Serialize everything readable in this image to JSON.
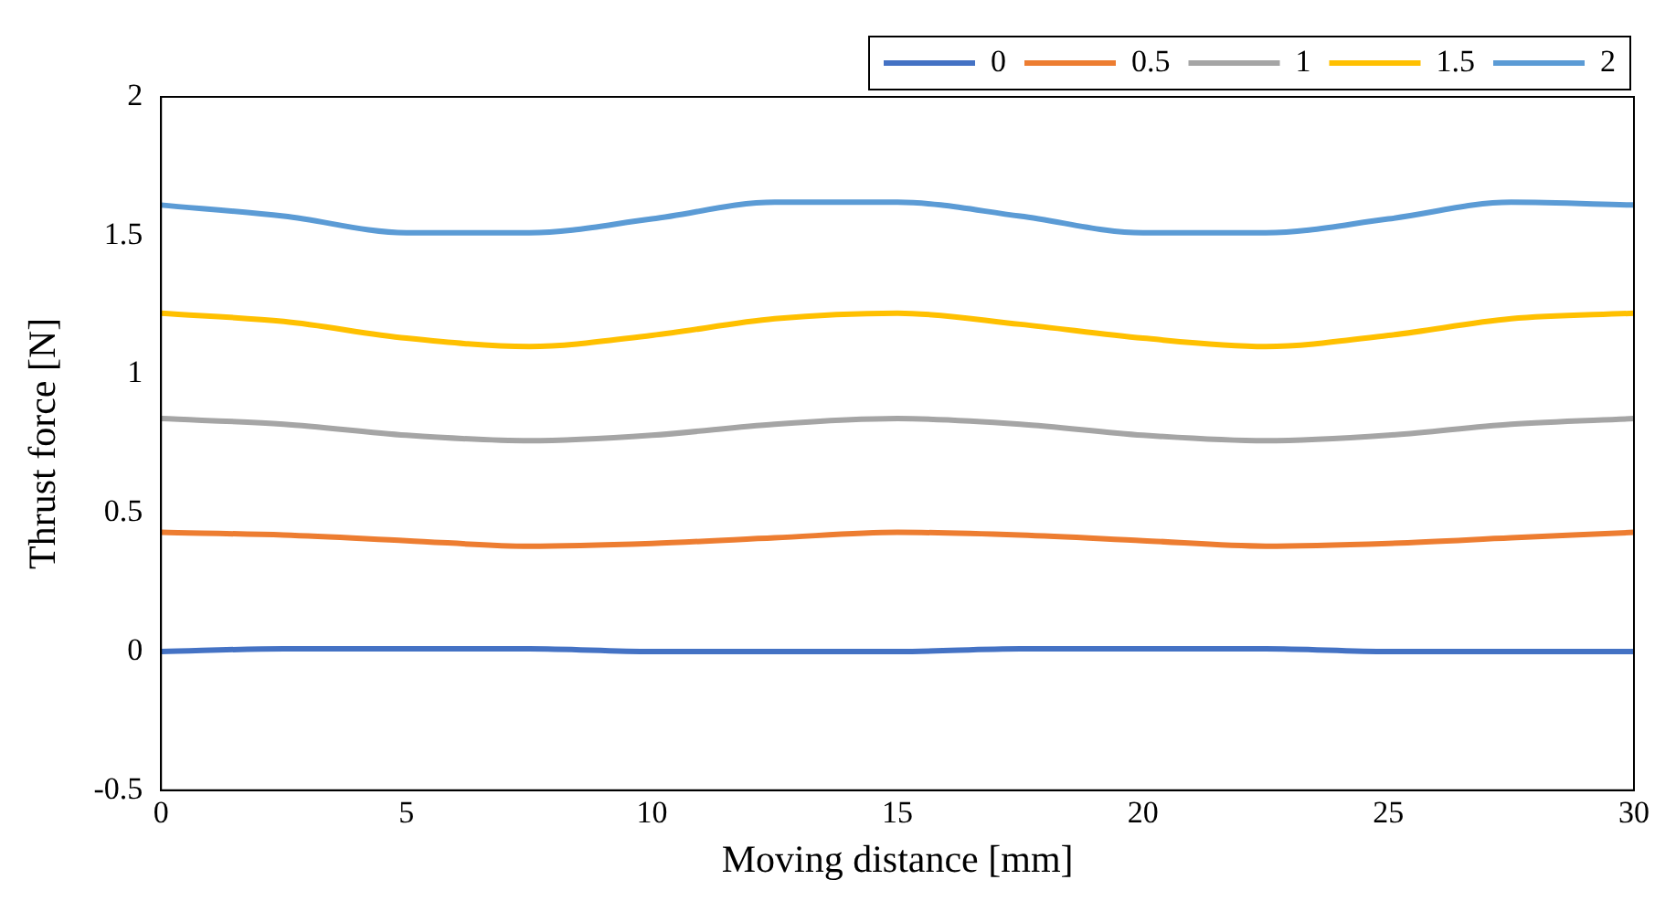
{
  "chart_data": {
    "type": "line",
    "xlabel": "Moving distance [mm]",
    "ylabel": "Thrust force [N]",
    "x": [
      0,
      2.5,
      5,
      7.5,
      10,
      12.5,
      15,
      17.5,
      20,
      22.5,
      25,
      27.5,
      30
    ],
    "series": [
      {
        "name": "0",
        "color": "#4472c4",
        "values": [
          0,
          0.01,
          0.01,
          0.01,
          0,
          0,
          0,
          0.01,
          0.01,
          0.01,
          0,
          0,
          0
        ]
      },
      {
        "name": "0.5",
        "color": "#ed7d31",
        "values": [
          0.43,
          0.42,
          0.4,
          0.38,
          0.39,
          0.41,
          0.43,
          0.42,
          0.4,
          0.38,
          0.39,
          0.41,
          0.43
        ]
      },
      {
        "name": "1",
        "color": "#a5a5a5",
        "values": [
          0.84,
          0.82,
          0.78,
          0.76,
          0.78,
          0.82,
          0.84,
          0.82,
          0.78,
          0.76,
          0.78,
          0.82,
          0.84
        ]
      },
      {
        "name": "1.5",
        "color": "#ffc000",
        "values": [
          1.22,
          1.19,
          1.13,
          1.1,
          1.14,
          1.2,
          1.22,
          1.18,
          1.13,
          1.1,
          1.14,
          1.2,
          1.22
        ]
      },
      {
        "name": "2",
        "color": "#5b9bd5",
        "values": [
          1.61,
          1.57,
          1.51,
          1.51,
          1.56,
          1.62,
          1.62,
          1.57,
          1.51,
          1.51,
          1.56,
          1.62,
          1.61
        ]
      }
    ],
    "xlim": [
      0,
      30
    ],
    "xticks": [
      0,
      5,
      10,
      15,
      20,
      25,
      30
    ],
    "ylim": [
      -0.5,
      2
    ],
    "yticks": [
      -0.5,
      0,
      0.5,
      1,
      1.5,
      2
    ],
    "grid": false,
    "legend": "top right",
    "marker": "none",
    "line_style": "solid"
  }
}
